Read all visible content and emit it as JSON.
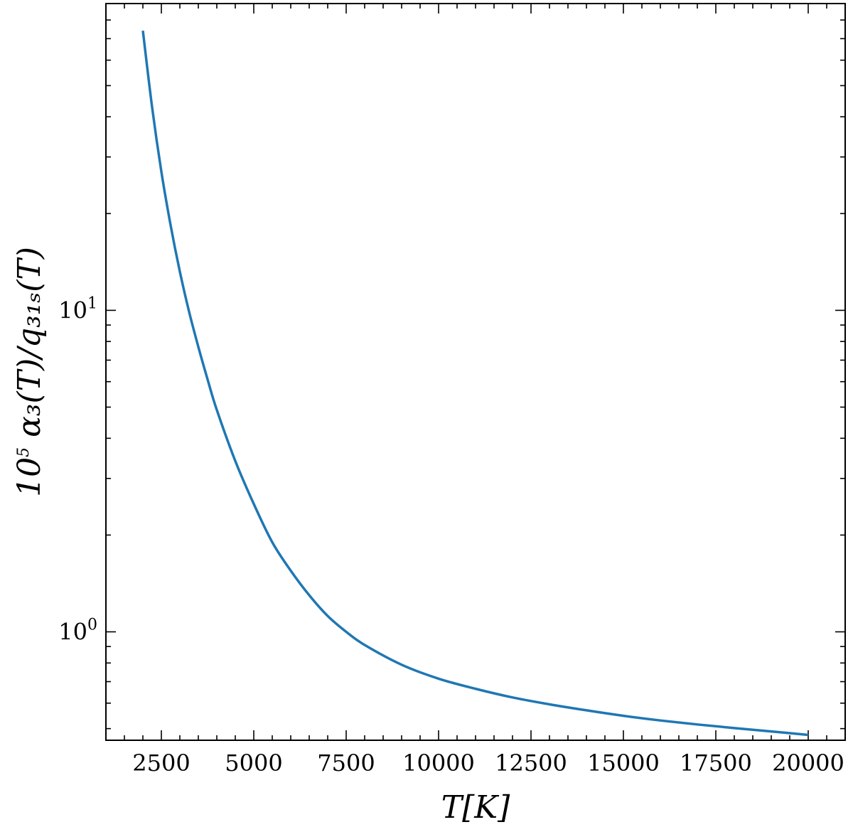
{
  "chart_data": {
    "type": "line",
    "title": "",
    "xlabel": "T[K]",
    "ylabel": "10^5 α3(T)/q31s(T)",
    "xlim": [
      1000,
      21000
    ],
    "ylim": [
      0.46,
      90
    ],
    "yscale": "log",
    "grid": false,
    "x_ticks": [
      2500,
      5000,
      7500,
      10000,
      12500,
      15000,
      17500,
      20000
    ],
    "x_tick_labels": [
      "2500",
      "5000",
      "7500",
      "10000",
      "12500",
      "15000",
      "17500",
      "20000"
    ],
    "y_ticks": [
      {
        "value": 1,
        "base": "10",
        "exp": "0"
      },
      {
        "value": 10,
        "base": "10",
        "exp": "1"
      }
    ],
    "series": [
      {
        "color": "#1f77b4",
        "x": [
          2000,
          2250,
          2500,
          2750,
          3000,
          3250,
          3500,
          3750,
          4000,
          4500,
          5000,
          5500,
          6000,
          6500,
          7000,
          7500,
          8000,
          9000,
          10000,
          11000,
          12000,
          13000,
          14000,
          15000,
          16000,
          17000,
          18000,
          19000,
          20000
        ],
        "y": [
          74.1,
          42.8,
          27.0,
          18.4,
          13.2,
          9.9,
          7.7,
          6.1,
          4.9,
          3.4,
          2.5,
          1.9,
          1.55,
          1.3,
          1.12,
          1.0,
          0.91,
          0.79,
          0.715,
          0.665,
          0.625,
          0.595,
          0.57,
          0.548,
          0.53,
          0.515,
          0.502,
          0.49,
          0.478
        ]
      }
    ]
  }
}
